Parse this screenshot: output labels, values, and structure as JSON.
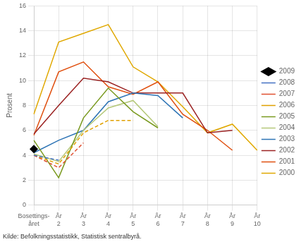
{
  "chart_data": {
    "type": "line",
    "y_label": "Prosent",
    "caption": "Kilde: Befolkningsstatistikk, Statistisk sentralbyrå.",
    "categories": [
      "Bosettings-\nåret",
      "År\n2",
      "År\n3",
      "År\n4",
      "År\n5",
      "År\n6",
      "År\n7",
      "År\n8",
      "År\n9",
      "År\n10"
    ],
    "series": [
      {
        "name": "2009",
        "color": "#000000",
        "line_style": "none",
        "marker": "diamond",
        "values": [
          4.5,
          null,
          null,
          null,
          null,
          null,
          null,
          null,
          null,
          null
        ]
      },
      {
        "name": "2008",
        "color": "#4472c4",
        "line_style": "dashed",
        "values": [
          4.0,
          3.6,
          null,
          null,
          null,
          null,
          null,
          null,
          null,
          null
        ]
      },
      {
        "name": "2007",
        "color": "#e05030",
        "line_style": "dashed",
        "values": [
          4.0,
          3.0,
          5.0,
          null,
          null,
          null,
          null,
          null,
          null,
          null
        ]
      },
      {
        "name": "2006",
        "color": "#e0a000",
        "line_style": "dashed",
        "values": [
          4.0,
          3.3,
          5.8,
          6.8,
          6.8,
          null,
          null,
          null,
          null,
          null
        ]
      },
      {
        "name": "2005",
        "color": "#7a9a20",
        "line_style": "solid",
        "values": [
          5.2,
          2.2,
          7.0,
          9.4,
          7.5,
          6.2,
          null,
          null,
          null,
          null
        ]
      },
      {
        "name": "2004",
        "color": "#b5c87a",
        "line_style": "solid",
        "values": [
          4.1,
          3.5,
          6.0,
          7.8,
          8.4,
          6.3,
          null,
          null,
          null,
          null
        ]
      },
      {
        "name": "2003",
        "color": "#2e74b5",
        "line_style": "solid",
        "values": [
          4.2,
          5.2,
          6.0,
          8.3,
          9.0,
          8.8,
          7.0,
          null,
          null,
          null
        ]
      },
      {
        "name": "2002",
        "color": "#9b2323",
        "line_style": "solid",
        "values": [
          5.7,
          8.0,
          10.2,
          9.9,
          9.0,
          9.0,
          9.0,
          5.8,
          6.0,
          null
        ]
      },
      {
        "name": "2001",
        "color": "#e05010",
        "line_style": "solid",
        "values": [
          5.6,
          10.7,
          11.5,
          9.5,
          8.9,
          9.9,
          7.3,
          6.0,
          4.4,
          null
        ]
      },
      {
        "name": "2000",
        "color": "#e0a800",
        "line_style": "solid",
        "values": [
          7.3,
          13.1,
          13.8,
          14.5,
          11.1,
          9.9,
          7.9,
          5.8,
          6.5,
          4.4
        ]
      }
    ],
    "ylim": [
      0,
      16
    ],
    "yticks": [
      0,
      2,
      4,
      6,
      8,
      10,
      12,
      14,
      16
    ],
    "grid": true,
    "legend": "right"
  }
}
